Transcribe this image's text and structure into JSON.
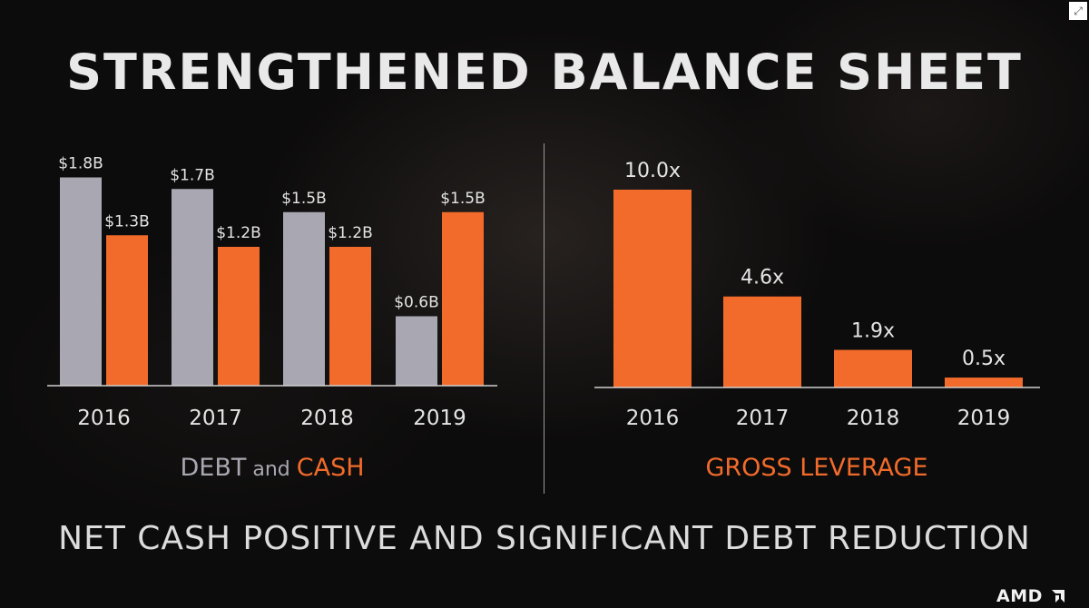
{
  "slide": {
    "title": "STRENGTHENED BALANCE SHEET",
    "subtitle": "NET CASH POSITIVE AND SIGNIFICANT DEBT REDUCTION",
    "logo": "AMD",
    "corner_icon": "expand-icon"
  },
  "legends": {
    "left": {
      "debt": "DEBT",
      "and": " and ",
      "cash": "CASH"
    },
    "right": {
      "text": "GROSS LEVERAGE"
    }
  },
  "colors": {
    "debt": "#a9a8b2",
    "cash": "#f26b2b",
    "leverage": "#f26b2b",
    "background": "#0d0c0c",
    "text": "#e4e4e4"
  },
  "chart_data": [
    {
      "type": "bar",
      "categories": [
        "2016",
        "2017",
        "2018",
        "2019"
      ],
      "series": [
        {
          "name": "DEBT",
          "values": [
            1.8,
            1.7,
            1.5,
            0.6
          ],
          "labels": [
            "$1.8B",
            "$1.7B",
            "$1.5B",
            "$0.6B"
          ]
        },
        {
          "name": "CASH",
          "values": [
            1.3,
            1.2,
            1.2,
            1.5
          ],
          "labels": [
            "$1.3B",
            "$1.2B",
            "$1.2B",
            "$1.5B"
          ]
        }
      ],
      "ylim": [
        0,
        2.0
      ]
    },
    {
      "type": "bar",
      "categories": [
        "2016",
        "2017",
        "2018",
        "2019"
      ],
      "series": [
        {
          "name": "GROSS LEVERAGE",
          "values": [
            10.0,
            4.6,
            1.9,
            0.5
          ],
          "labels": [
            "10.0x",
            "4.6x",
            "1.9x",
            "0.5x"
          ]
        }
      ],
      "ylim": [
        0,
        11
      ]
    }
  ]
}
